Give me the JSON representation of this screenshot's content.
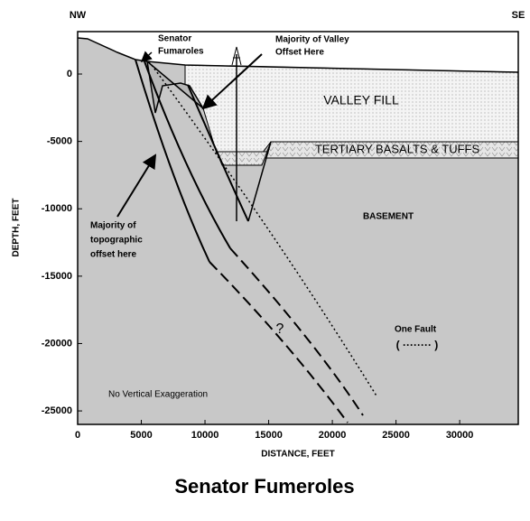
{
  "chart_data": {
    "type": "cross-section",
    "title": "Senator Fumeroles",
    "x_label": "DISTANCE, FEET",
    "y_label": "DEPTH, FEET",
    "corner_labels": [
      "NW",
      "SE"
    ],
    "xlim": [
      0,
      34600
    ],
    "ylim": [
      -26000,
      3150
    ],
    "xticks": [
      0,
      5000,
      10000,
      15000,
      20000,
      25000,
      30000
    ],
    "yticks": [
      0,
      -5000,
      -10000,
      -15000,
      -20000,
      -25000
    ],
    "annotations": {
      "fumaroles": [
        "Senator",
        "Fumaroles"
      ],
      "valley_offset": [
        "Majority of Valley",
        "Offset Here"
      ],
      "valley_fill": "VALLEY FILL",
      "basalts": "TERTIARY BASALTS & TUFFS",
      "basement": "BASEMENT",
      "topographic": [
        "Majority of",
        "topographic",
        "offset here"
      ],
      "question": "?",
      "one_fault": "One Fault",
      "one_fault_key": "( ········ )",
      "exaggeration": "No Vertical Exaggeration"
    }
  }
}
